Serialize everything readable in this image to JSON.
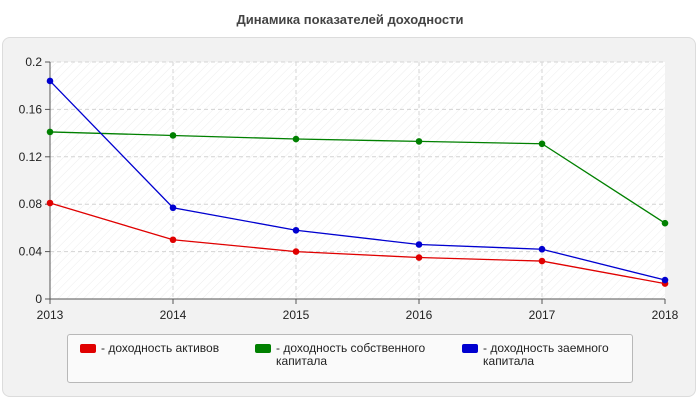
{
  "chart_data": {
    "type": "line",
    "title": "Динамика показателей доходности",
    "xlabel": "",
    "ylabel": "",
    "x": [
      "2013",
      "2014",
      "2015",
      "2016",
      "2017",
      "2018"
    ],
    "ylim": [
      0,
      0.2
    ],
    "yticks": [
      "0",
      "0.04",
      "0.08",
      "0.12",
      "0.16",
      "0.2"
    ],
    "grid": true,
    "legend_position": "bottom",
    "series": [
      {
        "name": "- доходность активов",
        "color": "#e00000",
        "values": [
          0.081,
          0.05,
          0.04,
          0.035,
          0.032,
          0.013
        ]
      },
      {
        "name": "- доходность собственного капитала",
        "color": "#008000",
        "values": [
          0.141,
          0.138,
          0.135,
          0.133,
          0.131,
          0.064
        ]
      },
      {
        "name": "- доходность заемного капитала",
        "color": "#0000d0",
        "values": [
          0.184,
          0.077,
          0.058,
          0.046,
          0.042,
          0.016
        ]
      }
    ]
  }
}
